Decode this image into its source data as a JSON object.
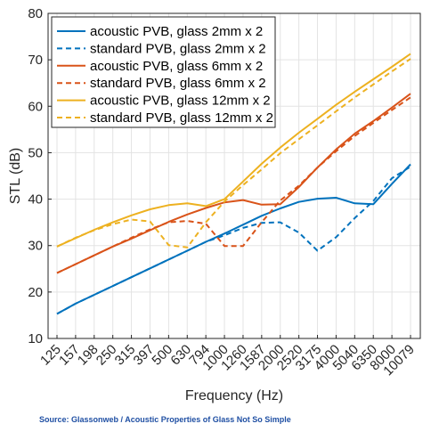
{
  "chart_data": {
    "type": "line",
    "title": "",
    "xlabel": "Frequency (Hz)",
    "ylabel": "STL (dB)",
    "x_scale": "categorical",
    "categories": [
      "125",
      "157",
      "198",
      "250",
      "315",
      "397",
      "500",
      "630",
      "794",
      "1000",
      "1260",
      "1587",
      "2000",
      "2520",
      "3175",
      "4000",
      "5040",
      "6350",
      "8000",
      "10079"
    ],
    "ylim": [
      10,
      80
    ],
    "yticks": [
      10,
      20,
      30,
      40,
      50,
      60,
      70,
      80
    ],
    "grid": true,
    "legend_position": "top-left",
    "series": [
      {
        "name": "acoustic PVB, glass 2mm x 2",
        "color": "#0072BD",
        "dash": "solid",
        "values": [
          15.3,
          17.5,
          19.4,
          21.3,
          23.2,
          25.1,
          27.0,
          28.9,
          30.8,
          32.6,
          34.5,
          36.4,
          38.0,
          39.4,
          40.1,
          40.3,
          39.1,
          38.9,
          43.3,
          47.5
        ]
      },
      {
        "name": "standard PVB, glass 2mm x 2",
        "color": "#0072BD",
        "dash": "dashed",
        "values": [
          15.3,
          17.5,
          19.4,
          21.3,
          23.2,
          25.1,
          27.0,
          28.9,
          30.8,
          32.2,
          33.8,
          34.9,
          35.0,
          32.8,
          28.9,
          31.8,
          35.9,
          39.6,
          44.5,
          47.0
        ]
      },
      {
        "name": "acoustic PVB, glass 6mm x 2",
        "color": "#D95319",
        "dash": "solid",
        "values": [
          24.1,
          26.0,
          27.9,
          29.8,
          31.5,
          33.3,
          35.1,
          36.7,
          38.1,
          39.3,
          39.8,
          38.8,
          38.9,
          42.6,
          46.8,
          50.7,
          54.1,
          56.8,
          59.7,
          62.7
        ]
      },
      {
        "name": "standard PVB, glass 6mm x 2",
        "color": "#D95319",
        "dash": "dashed",
        "values": [
          24.1,
          26.0,
          27.9,
          29.8,
          31.7,
          33.5,
          35.0,
          35.3,
          34.7,
          29.9,
          29.9,
          35.0,
          39.7,
          42.9,
          46.8,
          50.3,
          53.6,
          56.4,
          59.2,
          61.9
        ]
      },
      {
        "name": "acoustic PVB, glass 12mm x 2",
        "color": "#EDB120",
        "dash": "solid",
        "values": [
          29.8,
          31.6,
          33.4,
          35.0,
          36.5,
          37.8,
          38.7,
          39.1,
          38.5,
          40.0,
          43.8,
          47.6,
          51.1,
          54.3,
          57.3,
          60.3,
          63.1,
          65.8,
          68.5,
          71.3
        ]
      },
      {
        "name": "standard PVB, glass 12mm x 2",
        "color": "#EDB120",
        "dash": "dashed",
        "values": [
          29.8,
          31.7,
          33.3,
          34.6,
          35.6,
          35.2,
          30.1,
          29.6,
          35.0,
          39.5,
          43.0,
          46.4,
          49.9,
          52.9,
          55.9,
          58.9,
          61.9,
          64.7,
          67.5,
          70.2
        ]
      }
    ]
  },
  "source_text": "Source: Glassonweb / Acoustic Properties of Glass Not So Simple"
}
